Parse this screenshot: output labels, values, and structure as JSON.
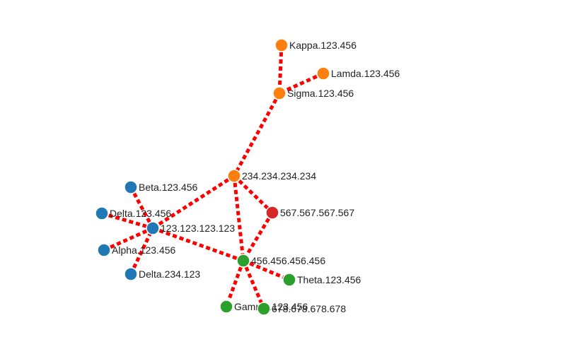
{
  "colors": {
    "link": "#ff0000",
    "groups": {
      "blue": "#1f77b4",
      "orange": "#ff7f0e",
      "red": "#d62728",
      "green": "#2ca02c"
    }
  },
  "nodes": [
    {
      "id": "kappa",
      "label": "Kappa.123.456",
      "group": "orange"
    },
    {
      "id": "lamda",
      "label": "Lamda.123.456",
      "group": "orange"
    },
    {
      "id": "sigma",
      "label": "Sigma.123.456",
      "group": "orange"
    },
    {
      "id": "n234",
      "label": "234.234.234.234",
      "group": "orange"
    },
    {
      "id": "n567",
      "label": "567.567.567.567",
      "group": "red"
    },
    {
      "id": "beta",
      "label": "Beta.123.456",
      "group": "blue"
    },
    {
      "id": "delta1",
      "label": "Delta.123.456",
      "group": "blue"
    },
    {
      "id": "n123",
      "label": "123.123.123.123",
      "group": "blue"
    },
    {
      "id": "alpha",
      "label": "Alpha.123.456",
      "group": "blue"
    },
    {
      "id": "delta2",
      "label": "Delta.234.123",
      "group": "blue"
    },
    {
      "id": "n456",
      "label": "456.456.456.456",
      "group": "green"
    },
    {
      "id": "theta",
      "label": "Theta.123.456",
      "group": "green"
    },
    {
      "id": "gamma",
      "label": "Gamma.123.456",
      "group": "green"
    },
    {
      "id": "n678",
      "label": "678.678.678.678",
      "group": "green"
    }
  ],
  "links": [
    {
      "source": "kappa",
      "target": "sigma"
    },
    {
      "source": "lamda",
      "target": "sigma"
    },
    {
      "source": "sigma",
      "target": "n234"
    },
    {
      "source": "n234",
      "target": "n123"
    },
    {
      "source": "n234",
      "target": "n567"
    },
    {
      "source": "n234",
      "target": "n456"
    },
    {
      "source": "n567",
      "target": "n456"
    },
    {
      "source": "beta",
      "target": "n123"
    },
    {
      "source": "delta1",
      "target": "n123"
    },
    {
      "source": "alpha",
      "target": "n123"
    },
    {
      "source": "delta2",
      "target": "n123"
    },
    {
      "source": "n123",
      "target": "n456"
    },
    {
      "source": "n456",
      "target": "theta"
    },
    {
      "source": "n456",
      "target": "gamma"
    },
    {
      "source": "n456",
      "target": "n678"
    }
  ]
}
